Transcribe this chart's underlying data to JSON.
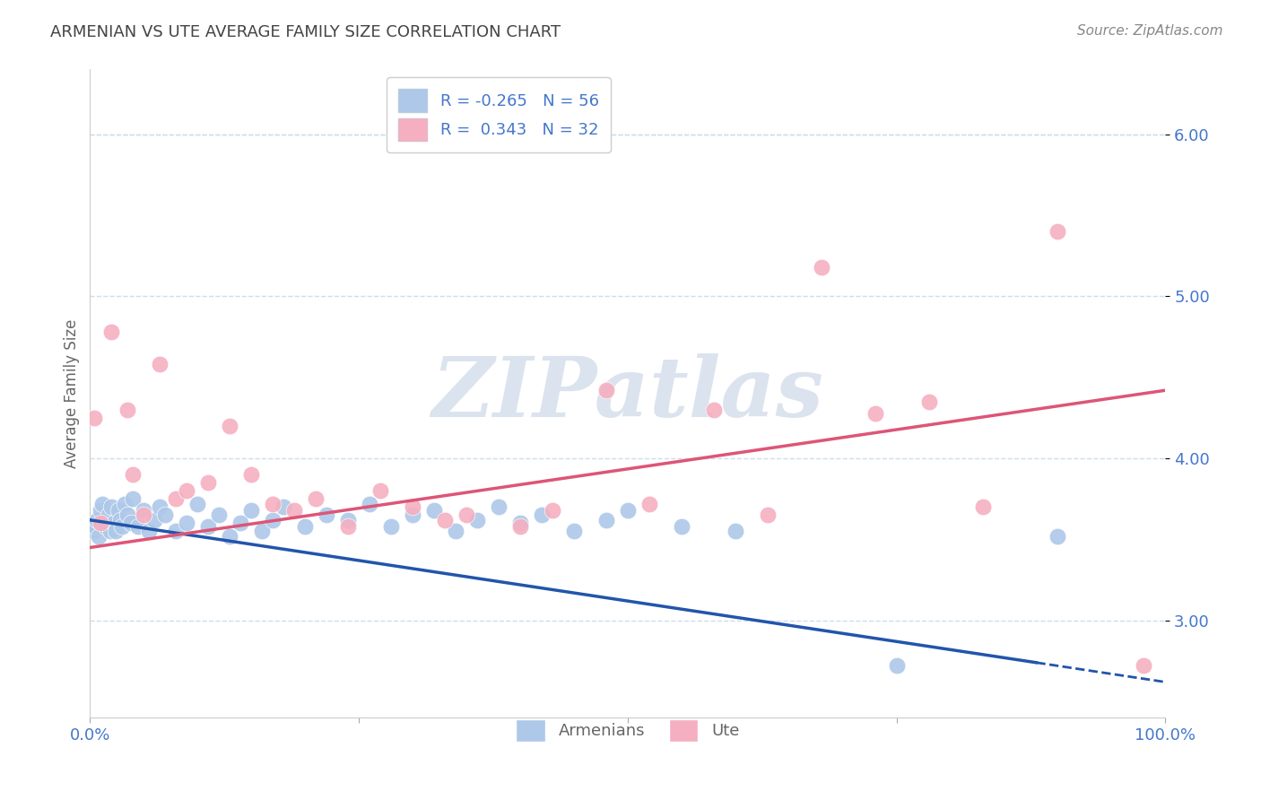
{
  "title": "ARMENIAN VS UTE AVERAGE FAMILY SIZE CORRELATION CHART",
  "source": "Source: ZipAtlas.com",
  "ylabel": "Average Family Size",
  "xlim": [
    0.0,
    100.0
  ],
  "ylim": [
    2.4,
    6.4
  ],
  "yticks": [
    3.0,
    4.0,
    5.0,
    6.0
  ],
  "xticks": [
    0.0,
    25.0,
    50.0,
    75.0,
    100.0
  ],
  "xticklabels": [
    "0.0%",
    "",
    "",
    "",
    "100.0%"
  ],
  "armenian_color": "#adc8e8",
  "ute_color": "#f5afc0",
  "armenian_line_color": "#2255aa",
  "armenian_line_color_dashed": "#4477bb",
  "ute_line_color": "#dd5577",
  "background_color": "#ffffff",
  "grid_color": "#ccddee",
  "title_color": "#444444",
  "axis_label_color": "#666666",
  "tick_label_color": "#4477cc",
  "source_color": "#888888",
  "watermark": "ZIPatlas",
  "watermark_color": "#ccd8e8",
  "legend_r_armenian": "-0.265",
  "legend_n_armenian": "56",
  "legend_r_ute": "0.343",
  "legend_n_ute": "32",
  "armenian_scatter": [
    [
      0.3,
      3.55
    ],
    [
      0.5,
      3.58
    ],
    [
      0.6,
      3.62
    ],
    [
      0.8,
      3.52
    ],
    [
      1.0,
      3.68
    ],
    [
      1.1,
      3.72
    ],
    [
      1.3,
      3.6
    ],
    [
      1.5,
      3.58
    ],
    [
      1.7,
      3.65
    ],
    [
      1.9,
      3.55
    ],
    [
      2.0,
      3.7
    ],
    [
      2.2,
      3.6
    ],
    [
      2.4,
      3.55
    ],
    [
      2.6,
      3.68
    ],
    [
      2.8,
      3.62
    ],
    [
      3.0,
      3.58
    ],
    [
      3.2,
      3.72
    ],
    [
      3.5,
      3.65
    ],
    [
      3.8,
      3.6
    ],
    [
      4.0,
      3.75
    ],
    [
      4.5,
      3.58
    ],
    [
      5.0,
      3.68
    ],
    [
      5.5,
      3.55
    ],
    [
      6.0,
      3.62
    ],
    [
      6.5,
      3.7
    ],
    [
      7.0,
      3.65
    ],
    [
      8.0,
      3.55
    ],
    [
      9.0,
      3.6
    ],
    [
      10.0,
      3.72
    ],
    [
      11.0,
      3.58
    ],
    [
      12.0,
      3.65
    ],
    [
      13.0,
      3.52
    ],
    [
      14.0,
      3.6
    ],
    [
      15.0,
      3.68
    ],
    [
      16.0,
      3.55
    ],
    [
      17.0,
      3.62
    ],
    [
      18.0,
      3.7
    ],
    [
      20.0,
      3.58
    ],
    [
      22.0,
      3.65
    ],
    [
      24.0,
      3.62
    ],
    [
      26.0,
      3.72
    ],
    [
      28.0,
      3.58
    ],
    [
      30.0,
      3.65
    ],
    [
      32.0,
      3.68
    ],
    [
      34.0,
      3.55
    ],
    [
      36.0,
      3.62
    ],
    [
      38.0,
      3.7
    ],
    [
      40.0,
      3.6
    ],
    [
      42.0,
      3.65
    ],
    [
      45.0,
      3.55
    ],
    [
      48.0,
      3.62
    ],
    [
      50.0,
      3.68
    ],
    [
      55.0,
      3.58
    ],
    [
      60.0,
      3.55
    ],
    [
      75.0,
      2.72
    ],
    [
      90.0,
      3.52
    ]
  ],
  "ute_scatter": [
    [
      0.4,
      4.25
    ],
    [
      1.0,
      3.6
    ],
    [
      2.0,
      4.78
    ],
    [
      3.5,
      4.3
    ],
    [
      4.0,
      3.9
    ],
    [
      5.0,
      3.65
    ],
    [
      6.5,
      4.58
    ],
    [
      8.0,
      3.75
    ],
    [
      9.0,
      3.8
    ],
    [
      11.0,
      3.85
    ],
    [
      13.0,
      4.2
    ],
    [
      15.0,
      3.9
    ],
    [
      17.0,
      3.72
    ],
    [
      19.0,
      3.68
    ],
    [
      21.0,
      3.75
    ],
    [
      24.0,
      3.58
    ],
    [
      27.0,
      3.8
    ],
    [
      30.0,
      3.7
    ],
    [
      33.0,
      3.62
    ],
    [
      35.0,
      3.65
    ],
    [
      40.0,
      3.58
    ],
    [
      43.0,
      3.68
    ],
    [
      48.0,
      4.42
    ],
    [
      52.0,
      3.72
    ],
    [
      58.0,
      4.3
    ],
    [
      63.0,
      3.65
    ],
    [
      68.0,
      5.18
    ],
    [
      73.0,
      4.28
    ],
    [
      78.0,
      4.35
    ],
    [
      83.0,
      3.7
    ],
    [
      90.0,
      5.4
    ],
    [
      98.0,
      2.72
    ]
  ],
  "blue_solid_end": 88.0,
  "blue_dashed_start": 88.0
}
